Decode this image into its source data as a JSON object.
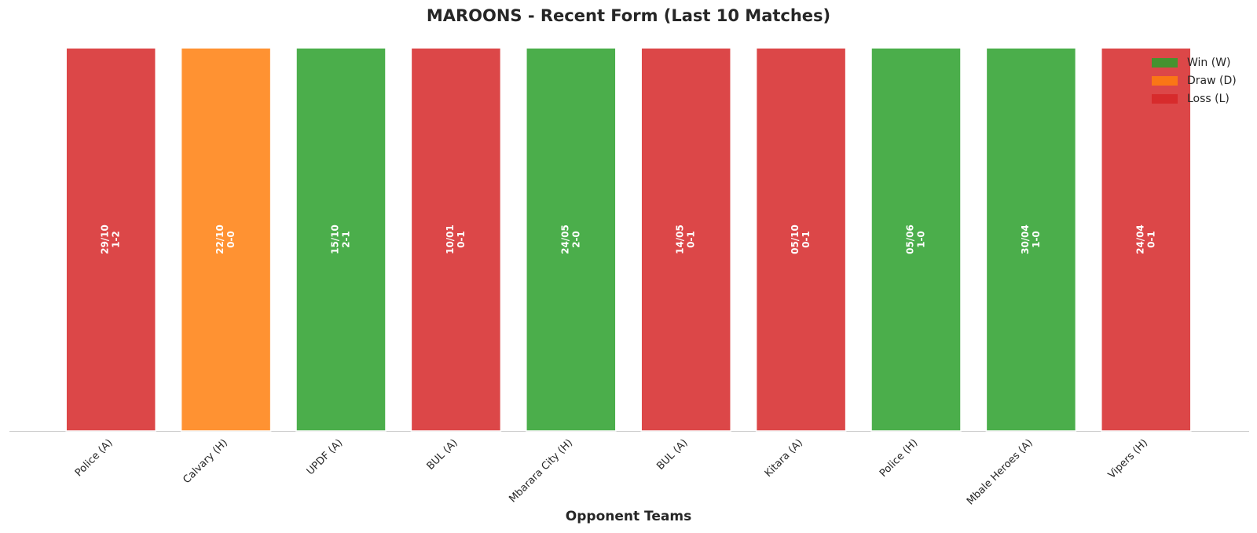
{
  "chart_data": {
    "type": "bar",
    "title": "MAROONS - Recent Form (Last 10 Matches)",
    "x_label": "Opponent Teams",
    "categories": [
      "Police (A)",
      "Calvary (H)",
      "UPDF (A)",
      "BUL (A)",
      "Mbarara City (H)",
      "BUL (A)",
      "Kitara (A)",
      "Police (H)",
      "Mbale Heroes (A)",
      "Vipers (H)"
    ],
    "values": [
      1,
      1,
      1,
      1,
      1,
      1,
      1,
      1,
      1,
      1
    ],
    "dates": [
      "29/10",
      "22/10",
      "15/10",
      "10/01",
      "24/05",
      "14/05",
      "05/10",
      "05/06",
      "30/04",
      "24/04"
    ],
    "scores": [
      "1-2",
      "0-0",
      "2-1",
      "0-1",
      "2-0",
      "0-1",
      "0-1",
      "1-0",
      "1-0",
      "0-1"
    ],
    "colors": [
      "#d62728",
      "#ff7f0e",
      "#2ca02c",
      "#d62728",
      "#2ca02c",
      "#d62728",
      "#d62728",
      "#2ca02c",
      "#2ca02c",
      "#d62728"
    ],
    "ylim": [
      0,
      1
    ],
    "legend_position": "upper right",
    "legend": [
      {
        "name": "Win (W)",
        "color": "#2ca02c"
      },
      {
        "name": "Draw (D)",
        "color": "#ff7f0e"
      },
      {
        "name": "Loss (L)",
        "color": "#d62728"
      }
    ]
  }
}
